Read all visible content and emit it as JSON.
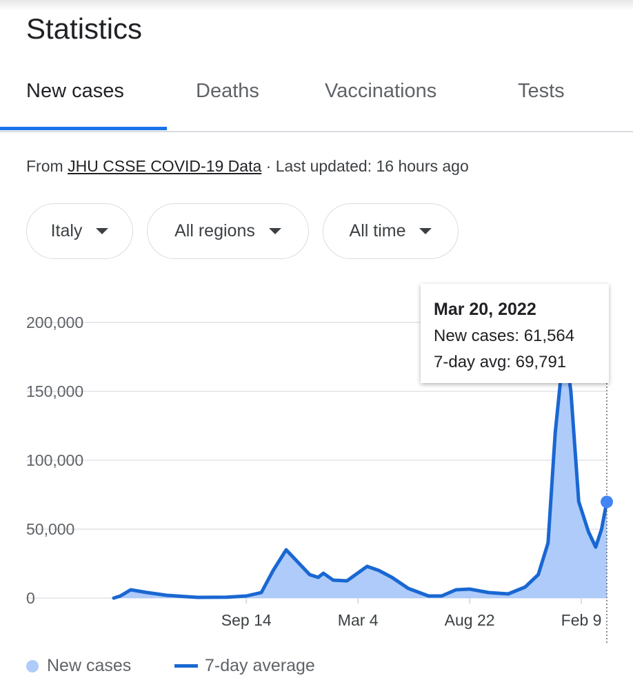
{
  "header": {
    "title": "Statistics"
  },
  "tabs": [
    {
      "label": "New cases",
      "active": true
    },
    {
      "label": "Deaths"
    },
    {
      "label": "Vaccinations"
    },
    {
      "label": "Tests"
    }
  ],
  "source": {
    "prefix": "From ",
    "link": "JHU CSSE COVID-19 Data",
    "suffix": " · Last updated: 16 hours ago"
  },
  "filters": [
    {
      "label": "Italy"
    },
    {
      "label": "All regions"
    },
    {
      "label": "All time"
    }
  ],
  "colors": {
    "accent": "#1a73e8",
    "line": "#1967d2",
    "area": "#aecbfa"
  },
  "tooltip": {
    "date": "Mar 20, 2022",
    "new_cases": "New cases: 61,564",
    "avg": "7-day avg: 69,791"
  },
  "legend": {
    "new_cases": "New cases",
    "avg": "7-day average"
  },
  "chart_data": {
    "type": "area",
    "ylim": [
      0,
      200000
    ],
    "yticks": [
      0,
      50000,
      100000,
      150000,
      200000
    ],
    "ytick_labels": [
      "0",
      "50,000",
      "100,000",
      "150,000",
      "200,000"
    ],
    "xlim": [
      "2020-02-24",
      "2022-03-20"
    ],
    "xticks": [
      "2020-09-14",
      "2021-03-04",
      "2021-08-22",
      "2022-02-09"
    ],
    "xtick_labels": [
      "Sep 14",
      "Mar 4",
      "Aug 22",
      "Feb 9"
    ],
    "grid": true,
    "legend_placement": "bottom",
    "series": [
      {
        "name": "7-day average",
        "type": "line",
        "points": [
          [
            "2020-02-24",
            0
          ],
          [
            "2020-03-05",
            1500
          ],
          [
            "2020-03-21",
            6000
          ],
          [
            "2020-04-15",
            4000
          ],
          [
            "2020-05-15",
            2000
          ],
          [
            "2020-07-01",
            500
          ],
          [
            "2020-08-15",
            600
          ],
          [
            "2020-09-14",
            1500
          ],
          [
            "2020-10-07",
            4000
          ],
          [
            "2020-10-25",
            20000
          ],
          [
            "2020-11-14",
            35000
          ],
          [
            "2020-11-28",
            28000
          ],
          [
            "2020-12-20",
            17000
          ],
          [
            "2021-01-02",
            15000
          ],
          [
            "2021-01-10",
            18000
          ],
          [
            "2021-01-25",
            13000
          ],
          [
            "2021-02-15",
            12500
          ],
          [
            "2021-03-18",
            23000
          ],
          [
            "2021-04-05",
            20000
          ],
          [
            "2021-04-25",
            15000
          ],
          [
            "2021-05-20",
            7000
          ],
          [
            "2021-06-20",
            1500
          ],
          [
            "2021-07-10",
            1500
          ],
          [
            "2021-08-01",
            6000
          ],
          [
            "2021-08-22",
            6500
          ],
          [
            "2021-09-20",
            4000
          ],
          [
            "2021-10-20",
            3000
          ],
          [
            "2021-11-15",
            8000
          ],
          [
            "2021-12-05",
            17000
          ],
          [
            "2021-12-20",
            40000
          ],
          [
            "2021-12-31",
            120000
          ],
          [
            "2022-01-14",
            185000
          ],
          [
            "2022-01-24",
            150000
          ],
          [
            "2022-02-05",
            70000
          ],
          [
            "2022-02-20",
            48000
          ],
          [
            "2022-03-03",
            37000
          ],
          [
            "2022-03-12",
            50000
          ],
          [
            "2022-03-20",
            69791
          ]
        ]
      },
      {
        "name": "New cases",
        "type": "area",
        "highlight": [
          "2022-03-20",
          61564
        ]
      }
    ]
  }
}
